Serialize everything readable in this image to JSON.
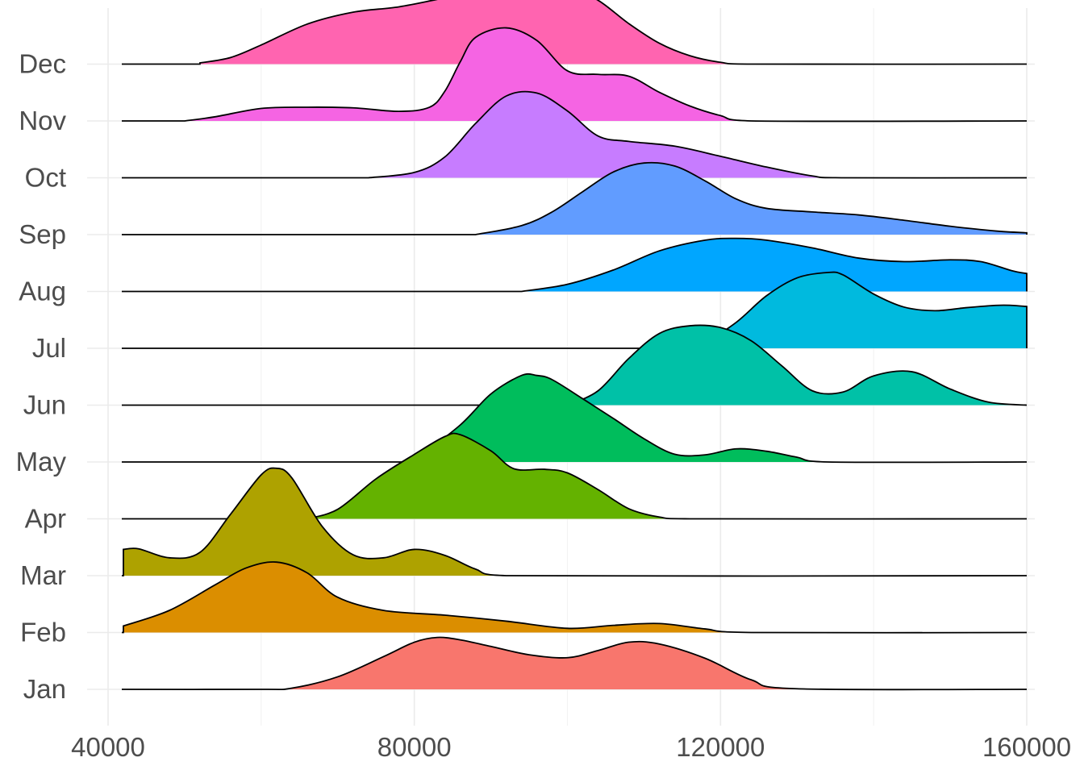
{
  "chart_data": {
    "type": "ridgeline",
    "title": "",
    "xlabel": "",
    "ylabel": "",
    "xlim": [
      40000,
      160000
    ],
    "x_ticks": [
      "40000",
      "80000",
      "120000",
      "160000"
    ],
    "x_tick_values": [
      40000,
      80000,
      120000,
      160000
    ],
    "x_minor_values": [
      60000,
      100000,
      140000
    ],
    "grid": true,
    "legend": "none",
    "density_scale_note": "relative peak heights per row",
    "series": [
      {
        "name": "Jan",
        "color": "#F8766D",
        "x": [
          42000,
          60000,
          64000,
          70000,
          76000,
          80000,
          83000,
          86000,
          90000,
          95000,
          100000,
          104000,
          108000,
          112000,
          118000,
          124000,
          130000,
          160000
        ],
        "y": [
          0.0,
          0.0,
          0.02,
          0.21,
          0.55,
          0.79,
          0.87,
          0.83,
          0.72,
          0.58,
          0.53,
          0.65,
          0.79,
          0.76,
          0.52,
          0.16,
          0.01,
          0.0
        ]
      },
      {
        "name": "Feb",
        "color": "#DB8E00",
        "x": [
          42000,
          48000,
          54000,
          58000,
          62000,
          66000,
          70000,
          76000,
          84000,
          92000,
          100000,
          106000,
          112000,
          118000,
          124000,
          160000
        ],
        "y": [
          0.11,
          0.37,
          0.8,
          1.08,
          1.18,
          1.0,
          0.59,
          0.37,
          0.29,
          0.19,
          0.07,
          0.12,
          0.15,
          0.06,
          0.0,
          0.0
        ]
      },
      {
        "name": "Mar",
        "color": "#AEA200",
        "x": [
          42000,
          44000,
          48000,
          52000,
          56000,
          60000,
          62000,
          64000,
          68000,
          72000,
          76000,
          80000,
          84000,
          88000,
          92000,
          160000
        ],
        "y": [
          0.44,
          0.45,
          0.3,
          0.39,
          1.03,
          1.69,
          1.8,
          1.64,
          0.82,
          0.35,
          0.3,
          0.44,
          0.34,
          0.11,
          0.0,
          0.0
        ]
      },
      {
        "name": "Apr",
        "color": "#64B200",
        "x": [
          66000,
          70000,
          75000,
          80000,
          84000,
          86000,
          90000,
          93000,
          97000,
          100000,
          104000,
          108000,
          112000,
          116000,
          160000
        ],
        "y": [
          0.0,
          0.16,
          0.67,
          1.08,
          1.38,
          1.41,
          1.14,
          0.84,
          0.83,
          0.77,
          0.49,
          0.17,
          0.03,
          0.0,
          0.0
        ]
      },
      {
        "name": "May",
        "color": "#00BD5C",
        "x": [
          80000,
          86000,
          90000,
          94000,
          96000,
          98000,
          102000,
          106000,
          110000,
          114000,
          118000,
          122000,
          126000,
          130000,
          134000,
          160000
        ],
        "y": [
          0.02,
          0.62,
          1.14,
          1.45,
          1.45,
          1.38,
          1.06,
          0.73,
          0.39,
          0.13,
          0.12,
          0.22,
          0.18,
          0.08,
          0.0,
          0.0
        ]
      },
      {
        "name": "Jun",
        "color": "#00C1A7",
        "x": [
          100000,
          104000,
          108000,
          112000,
          116000,
          120000,
          124000,
          128000,
          132000,
          136000,
          140000,
          145000,
          150000,
          155000,
          160000
        ],
        "y": [
          0.0,
          0.24,
          0.78,
          1.2,
          1.33,
          1.3,
          1.08,
          0.66,
          0.24,
          0.22,
          0.49,
          0.56,
          0.27,
          0.05,
          0.0
        ]
      },
      {
        "name": "Jul",
        "color": "#00BADE",
        "x": [
          117000,
          122000,
          126000,
          130000,
          134000,
          136000,
          140000,
          144000,
          148000,
          152000,
          156000,
          158000,
          160000
        ],
        "y": [
          0.0,
          0.43,
          0.88,
          1.18,
          1.27,
          1.23,
          0.91,
          0.69,
          0.63,
          0.68,
          0.72,
          0.72,
          0.7
        ]
      },
      {
        "name": "Aug",
        "color": "#00A6FF",
        "x": [
          94000,
          100000,
          106000,
          112000,
          118000,
          122000,
          126000,
          132000,
          138000,
          144000,
          150000,
          154000,
          158000,
          160000
        ],
        "y": [
          0.0,
          0.12,
          0.36,
          0.68,
          0.86,
          0.89,
          0.86,
          0.73,
          0.56,
          0.5,
          0.53,
          0.5,
          0.35,
          0.3
        ]
      },
      {
        "name": "Sep",
        "color": "#619CFF",
        "x": [
          88000,
          94000,
          98000,
          102000,
          106000,
          110000,
          114000,
          118000,
          122000,
          126000,
          132000,
          138000,
          144000,
          150000,
          156000,
          160000
        ],
        "y": [
          0.0,
          0.15,
          0.38,
          0.72,
          1.05,
          1.2,
          1.15,
          0.9,
          0.6,
          0.44,
          0.38,
          0.33,
          0.24,
          0.14,
          0.06,
          0.03
        ]
      },
      {
        "name": "Oct",
        "color": "#C77CFF",
        "x": [
          74000,
          80000,
          84000,
          88000,
          92000,
          96000,
          100000,
          104000,
          108000,
          114000,
          120000,
          126000,
          132000,
          136000,
          160000
        ],
        "y": [
          0.0,
          0.09,
          0.35,
          0.91,
          1.37,
          1.42,
          1.12,
          0.7,
          0.61,
          0.53,
          0.36,
          0.18,
          0.03,
          0.0,
          0.0
        ]
      },
      {
        "name": "Nov",
        "color": "#F564E3",
        "x": [
          50000,
          54000,
          60000,
          66000,
          72000,
          78000,
          82000,
          84000,
          86000,
          88000,
          92000,
          96000,
          100000,
          104000,
          108000,
          112000,
          116000,
          120000,
          124000,
          160000
        ],
        "y": [
          0.0,
          0.07,
          0.21,
          0.23,
          0.22,
          0.16,
          0.23,
          0.5,
          0.99,
          1.4,
          1.56,
          1.35,
          0.84,
          0.78,
          0.75,
          0.48,
          0.25,
          0.09,
          0.0,
          0.0
        ]
      },
      {
        "name": "Dec",
        "color": "#FF64B0",
        "x": [
          52000,
          56000,
          60000,
          66000,
          72000,
          78000,
          84000,
          90000,
          96000,
          100000,
          104000,
          108000,
          112000,
          116000,
          120000,
          124000,
          160000
        ],
        "y": [
          0.02,
          0.11,
          0.32,
          0.67,
          0.87,
          0.96,
          1.11,
          1.25,
          1.32,
          1.29,
          1.07,
          0.68,
          0.35,
          0.14,
          0.03,
          0.0,
          0.0
        ]
      }
    ]
  }
}
